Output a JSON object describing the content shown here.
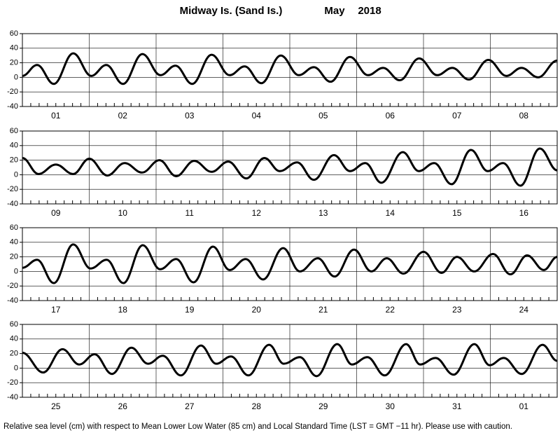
{
  "chart_data": {
    "type": "line",
    "title": "Midway Is. (Sand Is.)",
    "month": "May",
    "year": "2018",
    "note": "Relative sea level (cm) with respect to Mean Lower Low Water (85 cm) and Local Standard Time (LST = GMT −11 hr). Please use with caution.",
    "color": "#000000",
    "grid": true,
    "ylim": [
      -40,
      60
    ],
    "yticks": [
      -40,
      -20,
      0,
      20,
      40,
      60
    ],
    "xlim": [
      0,
      8
    ],
    "xticks": [
      0,
      1,
      2,
      3,
      4,
      5,
      6,
      7,
      8
    ],
    "panels": [
      {
        "categories": [
          "01",
          "02",
          "03",
          "04",
          "05",
          "06",
          "07",
          "08"
        ],
        "x": [
          0,
          0.22,
          0.47,
          0.76,
          1.03,
          1.255,
          1.505,
          1.795,
          2.065,
          2.29,
          2.54,
          2.83,
          3.1,
          3.325,
          3.575,
          3.865,
          4.135,
          4.36,
          4.61,
          4.9,
          5.17,
          5.395,
          5.645,
          5.935,
          6.205,
          6.43,
          6.68,
          6.97,
          7.24,
          7.465,
          7.715,
          8
        ],
        "values": [
          2,
          17,
          -9,
          33,
          2,
          17,
          -9,
          32,
          3,
          16,
          -9,
          31,
          3,
          15,
          -8,
          30,
          3,
          14,
          -6,
          28,
          3,
          13,
          -4,
          26,
          3,
          13,
          -3,
          24,
          2,
          13,
          0,
          23
        ]
      },
      {
        "categories": [
          "09",
          "10",
          "11",
          "12",
          "13",
          "14",
          "15",
          "16"
        ],
        "x": [
          0,
          0.24,
          0.5,
          0.76,
          1.0,
          1.27,
          1.53,
          1.79,
          2.05,
          2.3,
          2.57,
          2.83,
          3.08,
          3.35,
          3.62,
          3.85,
          4.11,
          4.36,
          4.66,
          4.9,
          5.13,
          5.37,
          5.69,
          5.93,
          6.16,
          6.42,
          6.71,
          6.96,
          7.19,
          7.45,
          7.74,
          8
        ],
        "values": [
          23,
          1,
          14,
          1,
          22,
          -1,
          16,
          3,
          20,
          -2,
          19,
          4,
          18,
          -5,
          23,
          5,
          17,
          -7,
          27,
          5,
          16,
          -11,
          31,
          5,
          16,
          -13,
          34,
          5,
          16,
          -15,
          36,
          6
        ]
      },
      {
        "categories": [
          "17",
          "18",
          "19",
          "20",
          "21",
          "22",
          "23",
          "24"
        ],
        "x": [
          0,
          0.22,
          0.47,
          0.76,
          1.02,
          1.26,
          1.51,
          1.8,
          2.06,
          2.3,
          2.56,
          2.85,
          3.1,
          3.34,
          3.6,
          3.9,
          4.15,
          4.42,
          4.67,
          4.96,
          5.22,
          5.45,
          5.7,
          6.0,
          6.27,
          6.5,
          6.76,
          7.04,
          7.3,
          7.55,
          7.8,
          8
        ],
        "values": [
          5,
          16,
          -16,
          37,
          4,
          16,
          -16,
          36,
          3,
          17,
          -15,
          34,
          2,
          17,
          -11,
          32,
          0,
          18,
          -7,
          30,
          0,
          18,
          -3,
          27,
          -2,
          20,
          0,
          24,
          -4,
          22,
          2,
          20
        ]
      },
      {
        "categories": [
          "25",
          "26",
          "27",
          "28",
          "29",
          "30",
          "31",
          "01"
        ],
        "x": [
          0,
          0.31,
          0.6,
          0.85,
          1.08,
          1.34,
          1.63,
          1.88,
          2.1,
          2.37,
          2.67,
          2.9,
          3.12,
          3.38,
          3.69,
          3.91,
          4.15,
          4.4,
          4.71,
          4.93,
          5.16,
          5.42,
          5.74,
          5.95,
          6.18,
          6.45,
          6.76,
          6.99,
          7.2,
          7.47,
          7.78,
          8
        ],
        "values": [
          21,
          -6,
          26,
          5,
          19,
          -8,
          28,
          6,
          17,
          -10,
          31,
          6,
          16,
          -10,
          32,
          6,
          15,
          -11,
          33,
          5,
          15,
          -10,
          33,
          5,
          14,
          -9,
          33,
          4,
          14,
          -8,
          32,
          10
        ]
      }
    ]
  }
}
